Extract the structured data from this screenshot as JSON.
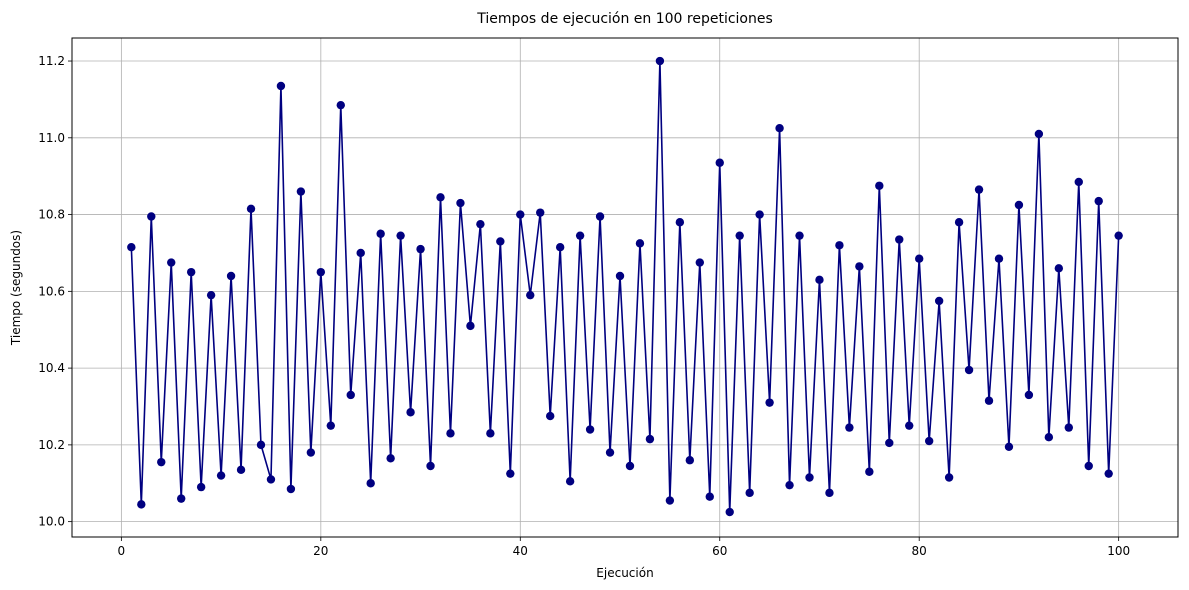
{
  "chart_data": {
    "type": "line",
    "title": "Tiempos de ejecución en 100 repeticiones",
    "xlabel": "Ejecución",
    "ylabel": "Tiempo (segundos)",
    "xlim": [
      -4.95,
      105.95
    ],
    "ylim": [
      9.96,
      11.26
    ],
    "xticks": [
      0,
      20,
      40,
      60,
      80,
      100
    ],
    "xtick_labels": [
      "0",
      "20",
      "40",
      "60",
      "80",
      "100"
    ],
    "yticks": [
      10.0,
      10.2,
      10.4,
      10.6,
      10.8,
      11.0,
      11.2
    ],
    "ytick_labels": [
      "10.0",
      "10.2",
      "10.4",
      "10.6",
      "10.8",
      "11.0",
      "11.2"
    ],
    "grid": true,
    "color": "#000080",
    "marker": "circle",
    "series": [
      {
        "x": [
          1,
          2,
          3,
          4,
          5,
          6,
          7,
          8,
          9,
          10,
          11,
          12,
          13,
          14,
          15,
          16,
          17,
          18,
          19,
          20,
          21,
          22,
          23,
          24,
          25,
          26,
          27,
          28,
          29,
          30,
          31,
          32,
          33,
          34,
          35,
          36,
          37,
          38,
          39,
          40,
          41,
          42,
          43,
          44,
          45,
          46,
          47,
          48,
          49,
          50,
          51,
          52,
          53,
          54,
          55,
          56,
          57,
          58,
          59,
          60,
          61,
          62,
          63,
          64,
          65,
          66,
          67,
          68,
          69,
          70,
          71,
          72,
          73,
          74,
          75,
          76,
          77,
          78,
          79,
          80,
          81,
          82,
          83,
          84,
          85,
          86,
          87,
          88,
          89,
          90,
          91,
          92,
          93,
          94,
          95,
          96,
          97,
          98,
          99,
          100
        ],
        "values": [
          10.715,
          10.045,
          10.795,
          10.155,
          10.675,
          10.06,
          10.65,
          10.09,
          10.59,
          10.12,
          10.64,
          10.135,
          10.815,
          10.2,
          10.11,
          11.135,
          10.085,
          10.86,
          10.18,
          10.65,
          10.25,
          11.085,
          10.33,
          10.7,
          10.1,
          10.75,
          10.165,
          10.745,
          10.285,
          10.71,
          10.145,
          10.845,
          10.23,
          10.83,
          10.51,
          10.775,
          10.23,
          10.73,
          10.125,
          10.8,
          10.59,
          10.805,
          10.275,
          10.715,
          10.105,
          10.745,
          10.24,
          10.795,
          10.18,
          10.64,
          10.145,
          10.725,
          10.215,
          11.2,
          10.055,
          10.78,
          10.16,
          10.675,
          10.065,
          10.935,
          10.025,
          10.745,
          10.075,
          10.8,
          10.31,
          11.025,
          10.095,
          10.745,
          10.115,
          10.63,
          10.075,
          10.72,
          10.245,
          10.665,
          10.13,
          10.875,
          10.205,
          10.735,
          10.25,
          10.685,
          10.21,
          10.575,
          10.115,
          10.78,
          10.395,
          10.865,
          10.315,
          10.685,
          10.195,
          10.825,
          10.33,
          11.01,
          10.22,
          10.66,
          10.245,
          10.885,
          10.145,
          10.835,
          10.125,
          10.745
        ]
      }
    ]
  }
}
